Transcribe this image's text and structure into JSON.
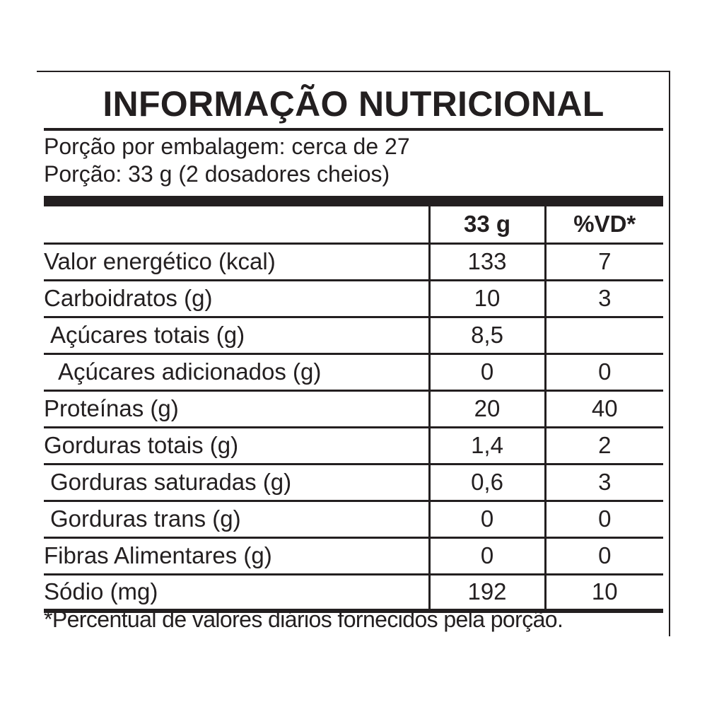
{
  "title": "INFORMAÇÃO NUTRICIONAL",
  "serving": {
    "per_package": "Porção por embalagem: cerca de 27",
    "size": "Porção: 33 g (2 dosadores cheios)"
  },
  "table": {
    "headers": {
      "name": "",
      "amount": "33 g",
      "dv": "%VD*"
    },
    "rows": [
      {
        "name": "Valor energético (kcal)",
        "amount": "133",
        "dv": "7"
      },
      {
        "name": "Carboidratos (g)",
        "amount": "10",
        "dv": "3"
      },
      {
        "name": "Açúcares totais (g)",
        "amount": "8,5",
        "dv": ""
      },
      {
        "name": "Açúcares adicionados (g)",
        "amount": "0",
        "dv": "0"
      },
      {
        "name": "Proteínas (g)",
        "amount": "20",
        "dv": "40"
      },
      {
        "name": "Gorduras totais (g)",
        "amount": "1,4",
        "dv": "2"
      },
      {
        "name": "Gorduras saturadas (g)",
        "amount": "0,6",
        "dv": "3"
      },
      {
        "name": "Gorduras trans (g)",
        "amount": "0",
        "dv": "0"
      },
      {
        "name": "Fibras Alimentares (g)",
        "amount": "0",
        "dv": "0"
      },
      {
        "name": "Sódio (mg)",
        "amount": "192",
        "dv": "10"
      }
    ]
  },
  "footnote": "*Percentual de valores diários fornecidos pela porção."
}
